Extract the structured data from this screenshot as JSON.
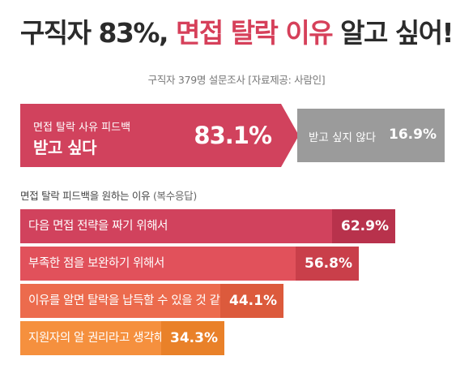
{
  "title": {
    "part1": "구직자 83%,",
    "part2": "면접 탈락 이유",
    "part3": "알고 싶어!"
  },
  "subtitle": "구직자 379명 설문조사 [자료제공: 사람인]",
  "colors": {
    "yes": "#d1425d",
    "no": "#9b9b9b",
    "bars": [
      "#d1425d",
      "#e1515b",
      "#ec6b4d",
      "#f5903e"
    ],
    "pct_boxes": [
      "#b8324c",
      "#c93f4a",
      "#dc5a3c",
      "#e98129"
    ]
  },
  "chart_data": [
    {
      "type": "bar",
      "categories": [
        "받고 싶다",
        "받고 싶지 않다"
      ],
      "values": [
        83.1,
        16.9
      ],
      "value_labels": [
        "83.1%",
        "16.9%"
      ],
      "title": "면접 탈락 사유 피드백",
      "stacked": true
    },
    {
      "type": "bar",
      "orientation": "horizontal",
      "title": "면접 탈락 피드백을 원하는 이유",
      "note": "(복수응답)",
      "categories": [
        "다음 면접 전략을 짜기 위해서",
        "부족한 점을 보완하기 위해서",
        "이유를 알면 탈락을 납득할 수 있을 것 같아서",
        "지원자의 알 권리라고 생각해서"
      ],
      "values": [
        62.9,
        56.8,
        44.1,
        34.3
      ],
      "value_labels": [
        "62.9%",
        "56.8%",
        "44.1%",
        "34.3%"
      ]
    }
  ]
}
